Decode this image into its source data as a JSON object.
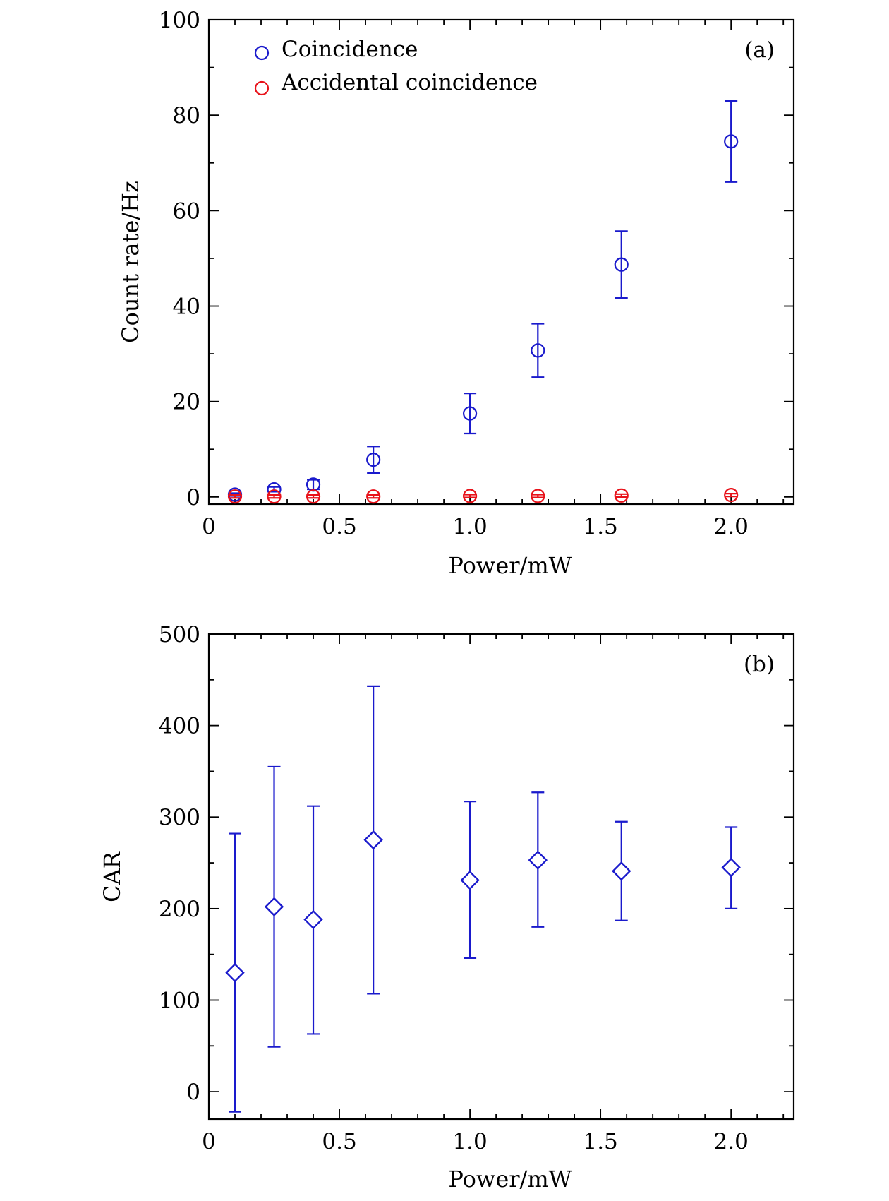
{
  "chart_data": [
    {
      "type": "scatter",
      "panel_label": "(a)",
      "xlabel": "Power/mW",
      "ylabel": "Count rate/Hz",
      "xlim": [
        0,
        2.24
      ],
      "ylim": [
        -1.5,
        100
      ],
      "xticks": [
        0,
        0.5,
        1.0,
        1.5,
        2.0
      ],
      "xtick_labels": [
        "0",
        "0.5",
        "1.0",
        "1.5",
        "2.0"
      ],
      "yticks": [
        0,
        20,
        40,
        60,
        80,
        100
      ],
      "ytick_labels": [
        "0",
        "20",
        "40",
        "60",
        "80",
        "100"
      ],
      "legend": {
        "placement": "top-left"
      },
      "series": [
        {
          "name": "Coincidence",
          "color": "#1a1acc",
          "marker": "circle",
          "x": [
            0.1,
            0.25,
            0.4,
            0.63,
            1.0,
            1.26,
            1.58,
            2.0
          ],
          "y": [
            0.5,
            1.6,
            2.6,
            7.8,
            17.5,
            30.7,
            48.7,
            74.5
          ],
          "yerr_low": [
            0.3,
            0.5,
            1.0,
            2.8,
            4.2,
            5.6,
            7.0,
            8.5
          ],
          "yerr_high": [
            0.3,
            0.5,
            1.0,
            2.8,
            4.2,
            5.6,
            7.0,
            8.5
          ]
        },
        {
          "name": "Accidental coincidence",
          "color": "#e8121a",
          "marker": "circle",
          "x": [
            0.1,
            0.25,
            0.4,
            0.63,
            1.0,
            1.26,
            1.58,
            2.0
          ],
          "y": [
            0.1,
            0.1,
            0.1,
            0.1,
            0.2,
            0.2,
            0.3,
            0.4
          ],
          "yerr_low": [
            0.3,
            0.3,
            0.3,
            0.3,
            0.3,
            0.3,
            0.3,
            0.3
          ],
          "yerr_high": [
            0.3,
            0.3,
            0.3,
            0.3,
            0.3,
            0.3,
            0.3,
            0.3
          ]
        }
      ]
    },
    {
      "type": "scatter",
      "panel_label": "(b)",
      "xlabel": "Power/mW",
      "ylabel": "CAR",
      "xlim": [
        0,
        2.24
      ],
      "ylim": [
        -30,
        500
      ],
      "xticks": [
        0,
        0.5,
        1.0,
        1.5,
        2.0
      ],
      "xtick_labels": [
        "0",
        "0.5",
        "1.0",
        "1.5",
        "2.0"
      ],
      "yticks": [
        0,
        100,
        200,
        300,
        400,
        500
      ],
      "ytick_labels": [
        "0",
        "100",
        "200",
        "300",
        "400",
        "500"
      ],
      "series": [
        {
          "color": "#1a1acc",
          "marker": "diamond",
          "x": [
            0.1,
            0.25,
            0.4,
            0.63,
            1.0,
            1.26,
            1.58,
            2.0
          ],
          "y": [
            130,
            202,
            188,
            275,
            231,
            253,
            241,
            245
          ],
          "yerr_low": [
            152,
            153,
            125,
            168,
            85,
            73,
            54,
            45
          ],
          "yerr_high": [
            152,
            153,
            124,
            168,
            86,
            74,
            54,
            44
          ]
        }
      ]
    }
  ]
}
